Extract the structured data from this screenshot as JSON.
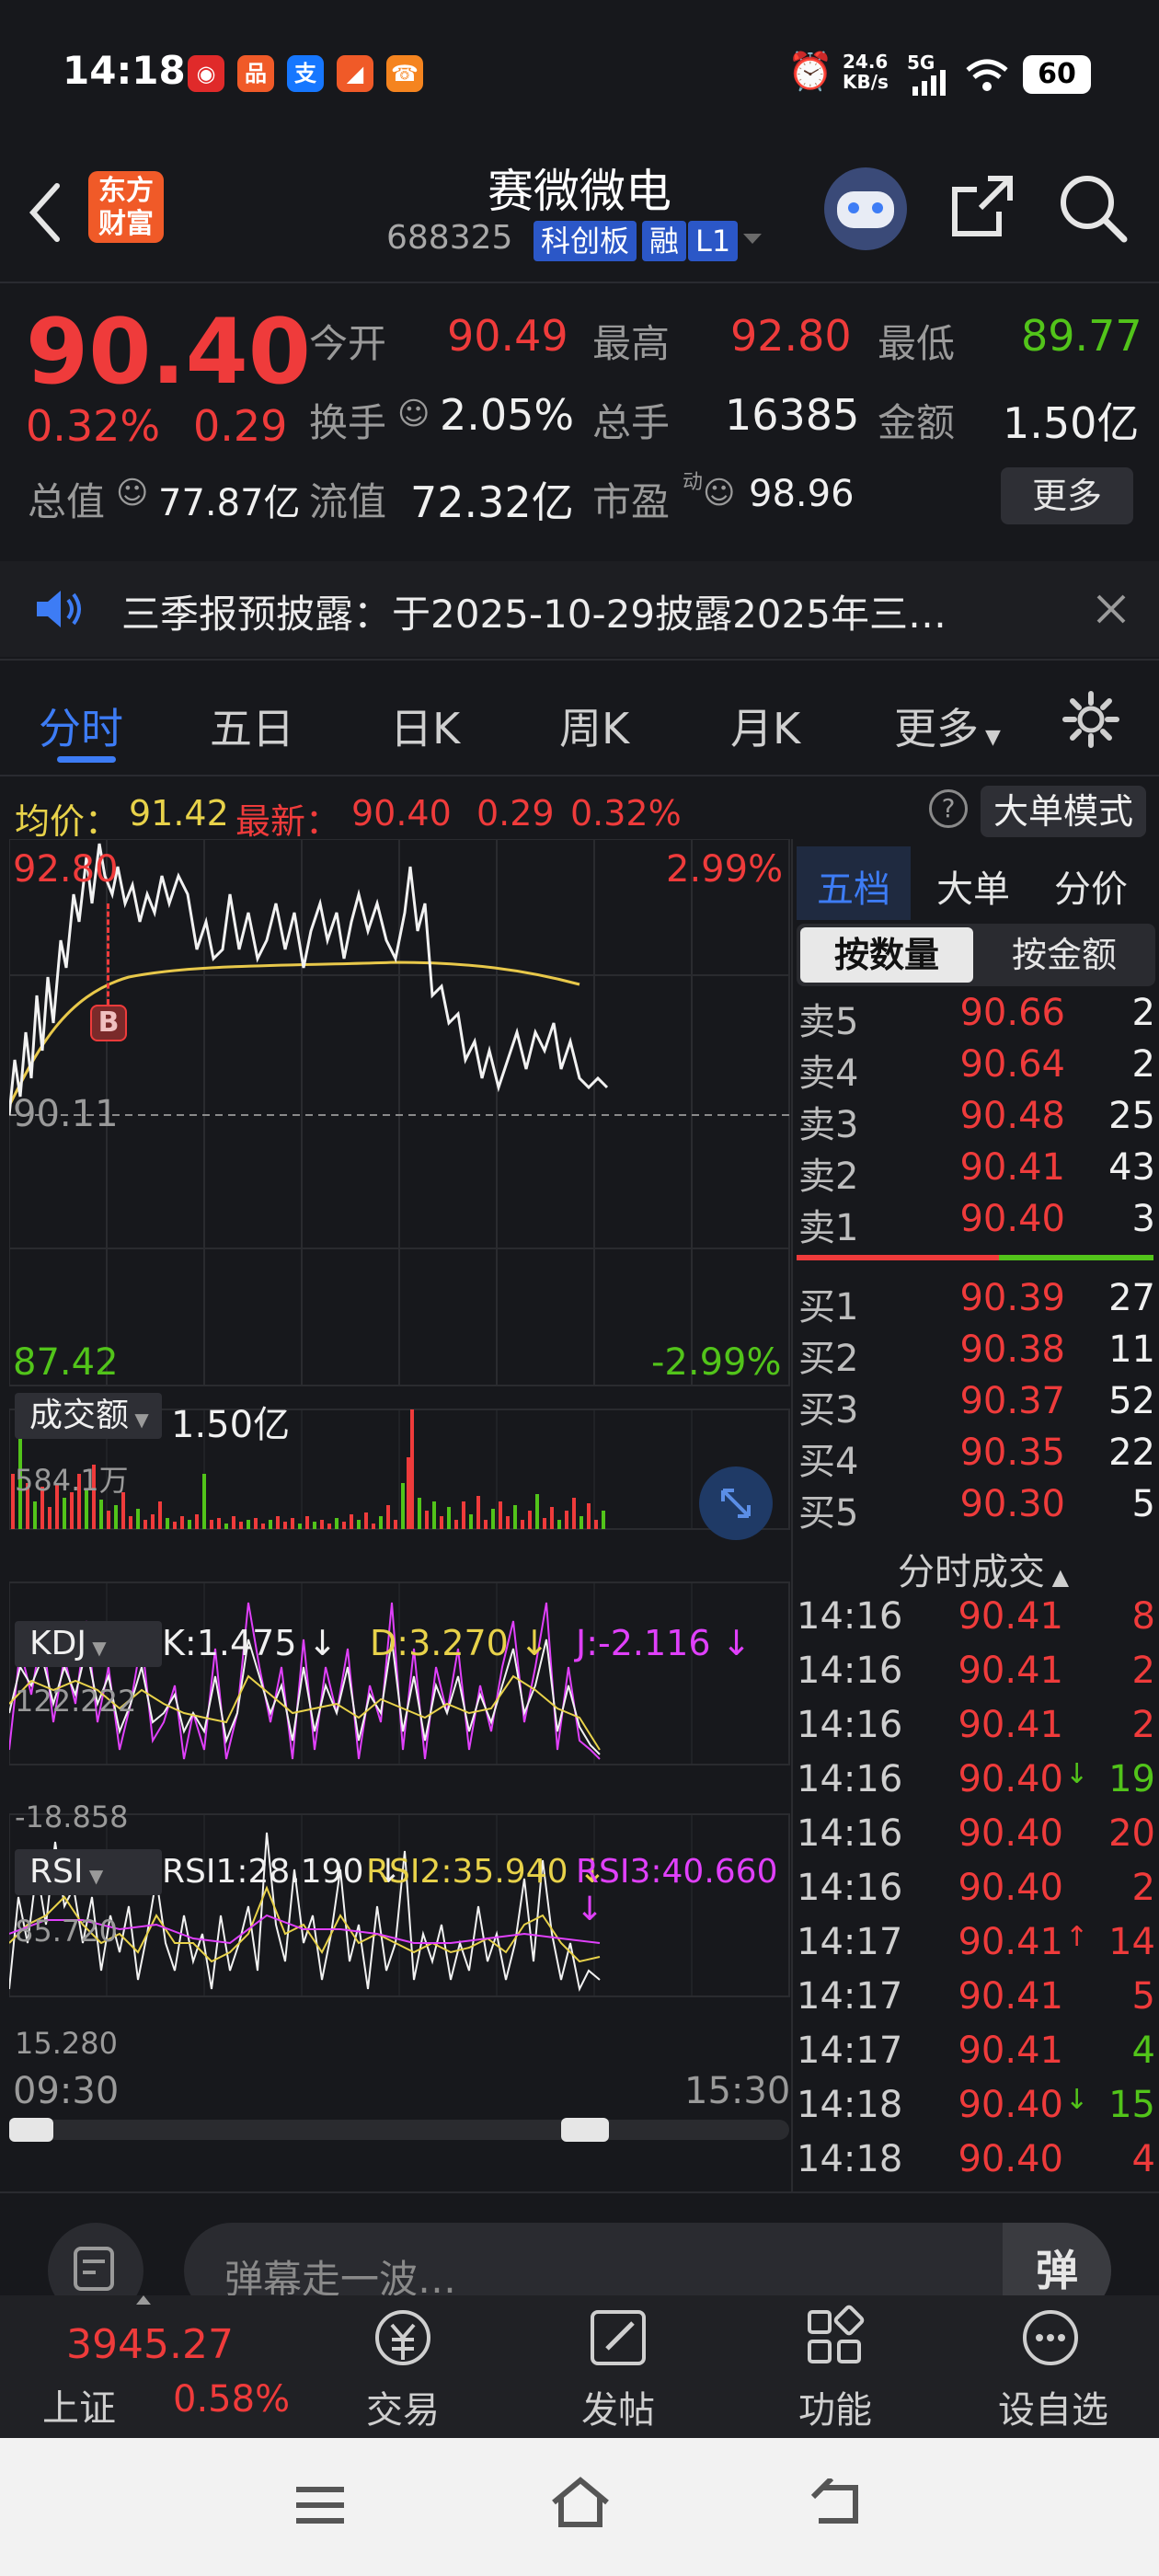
{
  "status": {
    "time": "14:18",
    "speed_top": "24.6",
    "speed_bottom": "KB/s",
    "net": "5G",
    "battery": "60"
  },
  "header": {
    "logo_line1": "东方",
    "logo_line2": "财富",
    "title": "赛微微电",
    "code": "688325",
    "tag_board": "科创板",
    "tag_margin": "融",
    "tag_level": "L1"
  },
  "quote": {
    "price": "90.40",
    "change_pct": "0.32%",
    "change": "0.29",
    "open_label": "今开",
    "open": "90.49",
    "high_label": "最高",
    "high": "92.80",
    "low_label": "最低",
    "low": "89.77",
    "turnover_label": "换手",
    "turnover": "2.05%",
    "volume_label": "总手",
    "volume": "16385",
    "amount_label": "金额",
    "amount": "1.50亿",
    "mcap_label": "总值",
    "mcap": "77.87亿",
    "float_label": "流值",
    "float_cap": "72.32亿",
    "pe_label": "市盈",
    "pe_sup": "动",
    "pe": "98.96",
    "more": "更多"
  },
  "notice": {
    "text": "三季报预披露：于2025-10-29披露2025年三…"
  },
  "tabs": [
    "分时",
    "五日",
    "日K",
    "周K",
    "月K",
    "更多"
  ],
  "avg": {
    "avg_label": "均价：",
    "avg_value": "91.42",
    "latest_label": "最新：",
    "latest_value": "90.40",
    "change": "0.29",
    "change_pct": "0.32%",
    "mode": "大单模式"
  },
  "chart": {
    "top_price": "92.80",
    "top_pct": "2.99%",
    "base_price": "90.11",
    "bottom_price": "87.42",
    "bottom_pct": "-2.99%",
    "marker": "B",
    "start_time": "09:30",
    "end_time": "15:30"
  },
  "volume": {
    "selector": "成交额",
    "total": "1.50亿",
    "axis_max": "584.1万"
  },
  "kdj": {
    "selector": "KDJ",
    "k": "K:1.475",
    "d": "D:3.270",
    "j": "J:-2.116",
    "axis_max": "122.222",
    "axis_min": "-18.858"
  },
  "rsi": {
    "selector": "RSI",
    "rsi1": "RSI1:28.190",
    "rsi2": "RSI2:35.940",
    "rsi3": "RSI3:40.660",
    "axis_max": "85.720",
    "axis_min": "15.280"
  },
  "side": {
    "tabs": [
      "五档",
      "大单",
      "分价"
    ],
    "mode_qty": "按数量",
    "mode_amt": "按金额",
    "asks": [
      {
        "label": "卖5",
        "price": "90.66",
        "qty": "2"
      },
      {
        "label": "卖4",
        "price": "90.64",
        "qty": "2"
      },
      {
        "label": "卖3",
        "price": "90.48",
        "qty": "25"
      },
      {
        "label": "卖2",
        "price": "90.41",
        "qty": "43"
      },
      {
        "label": "卖1",
        "price": "90.40",
        "qty": "3"
      }
    ],
    "bids": [
      {
        "label": "买1",
        "price": "90.39",
        "qty": "27"
      },
      {
        "label": "买2",
        "price": "90.38",
        "qty": "11"
      },
      {
        "label": "买3",
        "price": "90.37",
        "qty": "52"
      },
      {
        "label": "买4",
        "price": "90.35",
        "qty": "22"
      },
      {
        "label": "买5",
        "price": "90.30",
        "qty": "5"
      }
    ],
    "trades_title": "分时成交",
    "trades": [
      {
        "time": "14:16",
        "price": "90.41",
        "arrow": "",
        "qty": "8",
        "color": "#ef3b3b"
      },
      {
        "time": "14:16",
        "price": "90.41",
        "arrow": "",
        "qty": "2",
        "color": "#ef3b3b"
      },
      {
        "time": "14:16",
        "price": "90.41",
        "arrow": "",
        "qty": "2",
        "color": "#ef3b3b"
      },
      {
        "time": "14:16",
        "price": "90.40",
        "arrow": "↓",
        "qty": "19",
        "color": "#52c41a"
      },
      {
        "time": "14:16",
        "price": "90.40",
        "arrow": "",
        "qty": "20",
        "color": "#ef3b3b"
      },
      {
        "time": "14:16",
        "price": "90.40",
        "arrow": "",
        "qty": "2",
        "color": "#ef3b3b"
      },
      {
        "time": "14:17",
        "price": "90.41",
        "arrow": "↑",
        "qty": "14",
        "color": "#ef3b3b"
      },
      {
        "time": "14:17",
        "price": "90.41",
        "arrow": "",
        "qty": "5",
        "color": "#ef3b3b"
      },
      {
        "time": "14:17",
        "price": "90.41",
        "arrow": "",
        "qty": "4",
        "color": "#52c41a"
      },
      {
        "time": "14:18",
        "price": "90.40",
        "arrow": "↓",
        "qty": "15",
        "color": "#52c41a"
      },
      {
        "time": "14:18",
        "price": "90.40",
        "arrow": "",
        "qty": "4",
        "color": "#ef3b3b"
      }
    ]
  },
  "comment": {
    "placeholder": "弹幕走一波…",
    "danmu_btn": "弹"
  },
  "bottom": {
    "index_value": "3945.27",
    "index_name": "上证",
    "index_pct": "0.58%",
    "trade": "交易",
    "post": "发帖",
    "func": "功能",
    "watch": "设自选"
  },
  "colors": {
    "up": "#ef3b3b",
    "down": "#52c41a",
    "accent": "#3d7cf5",
    "avg_line": "#e8c84a"
  }
}
